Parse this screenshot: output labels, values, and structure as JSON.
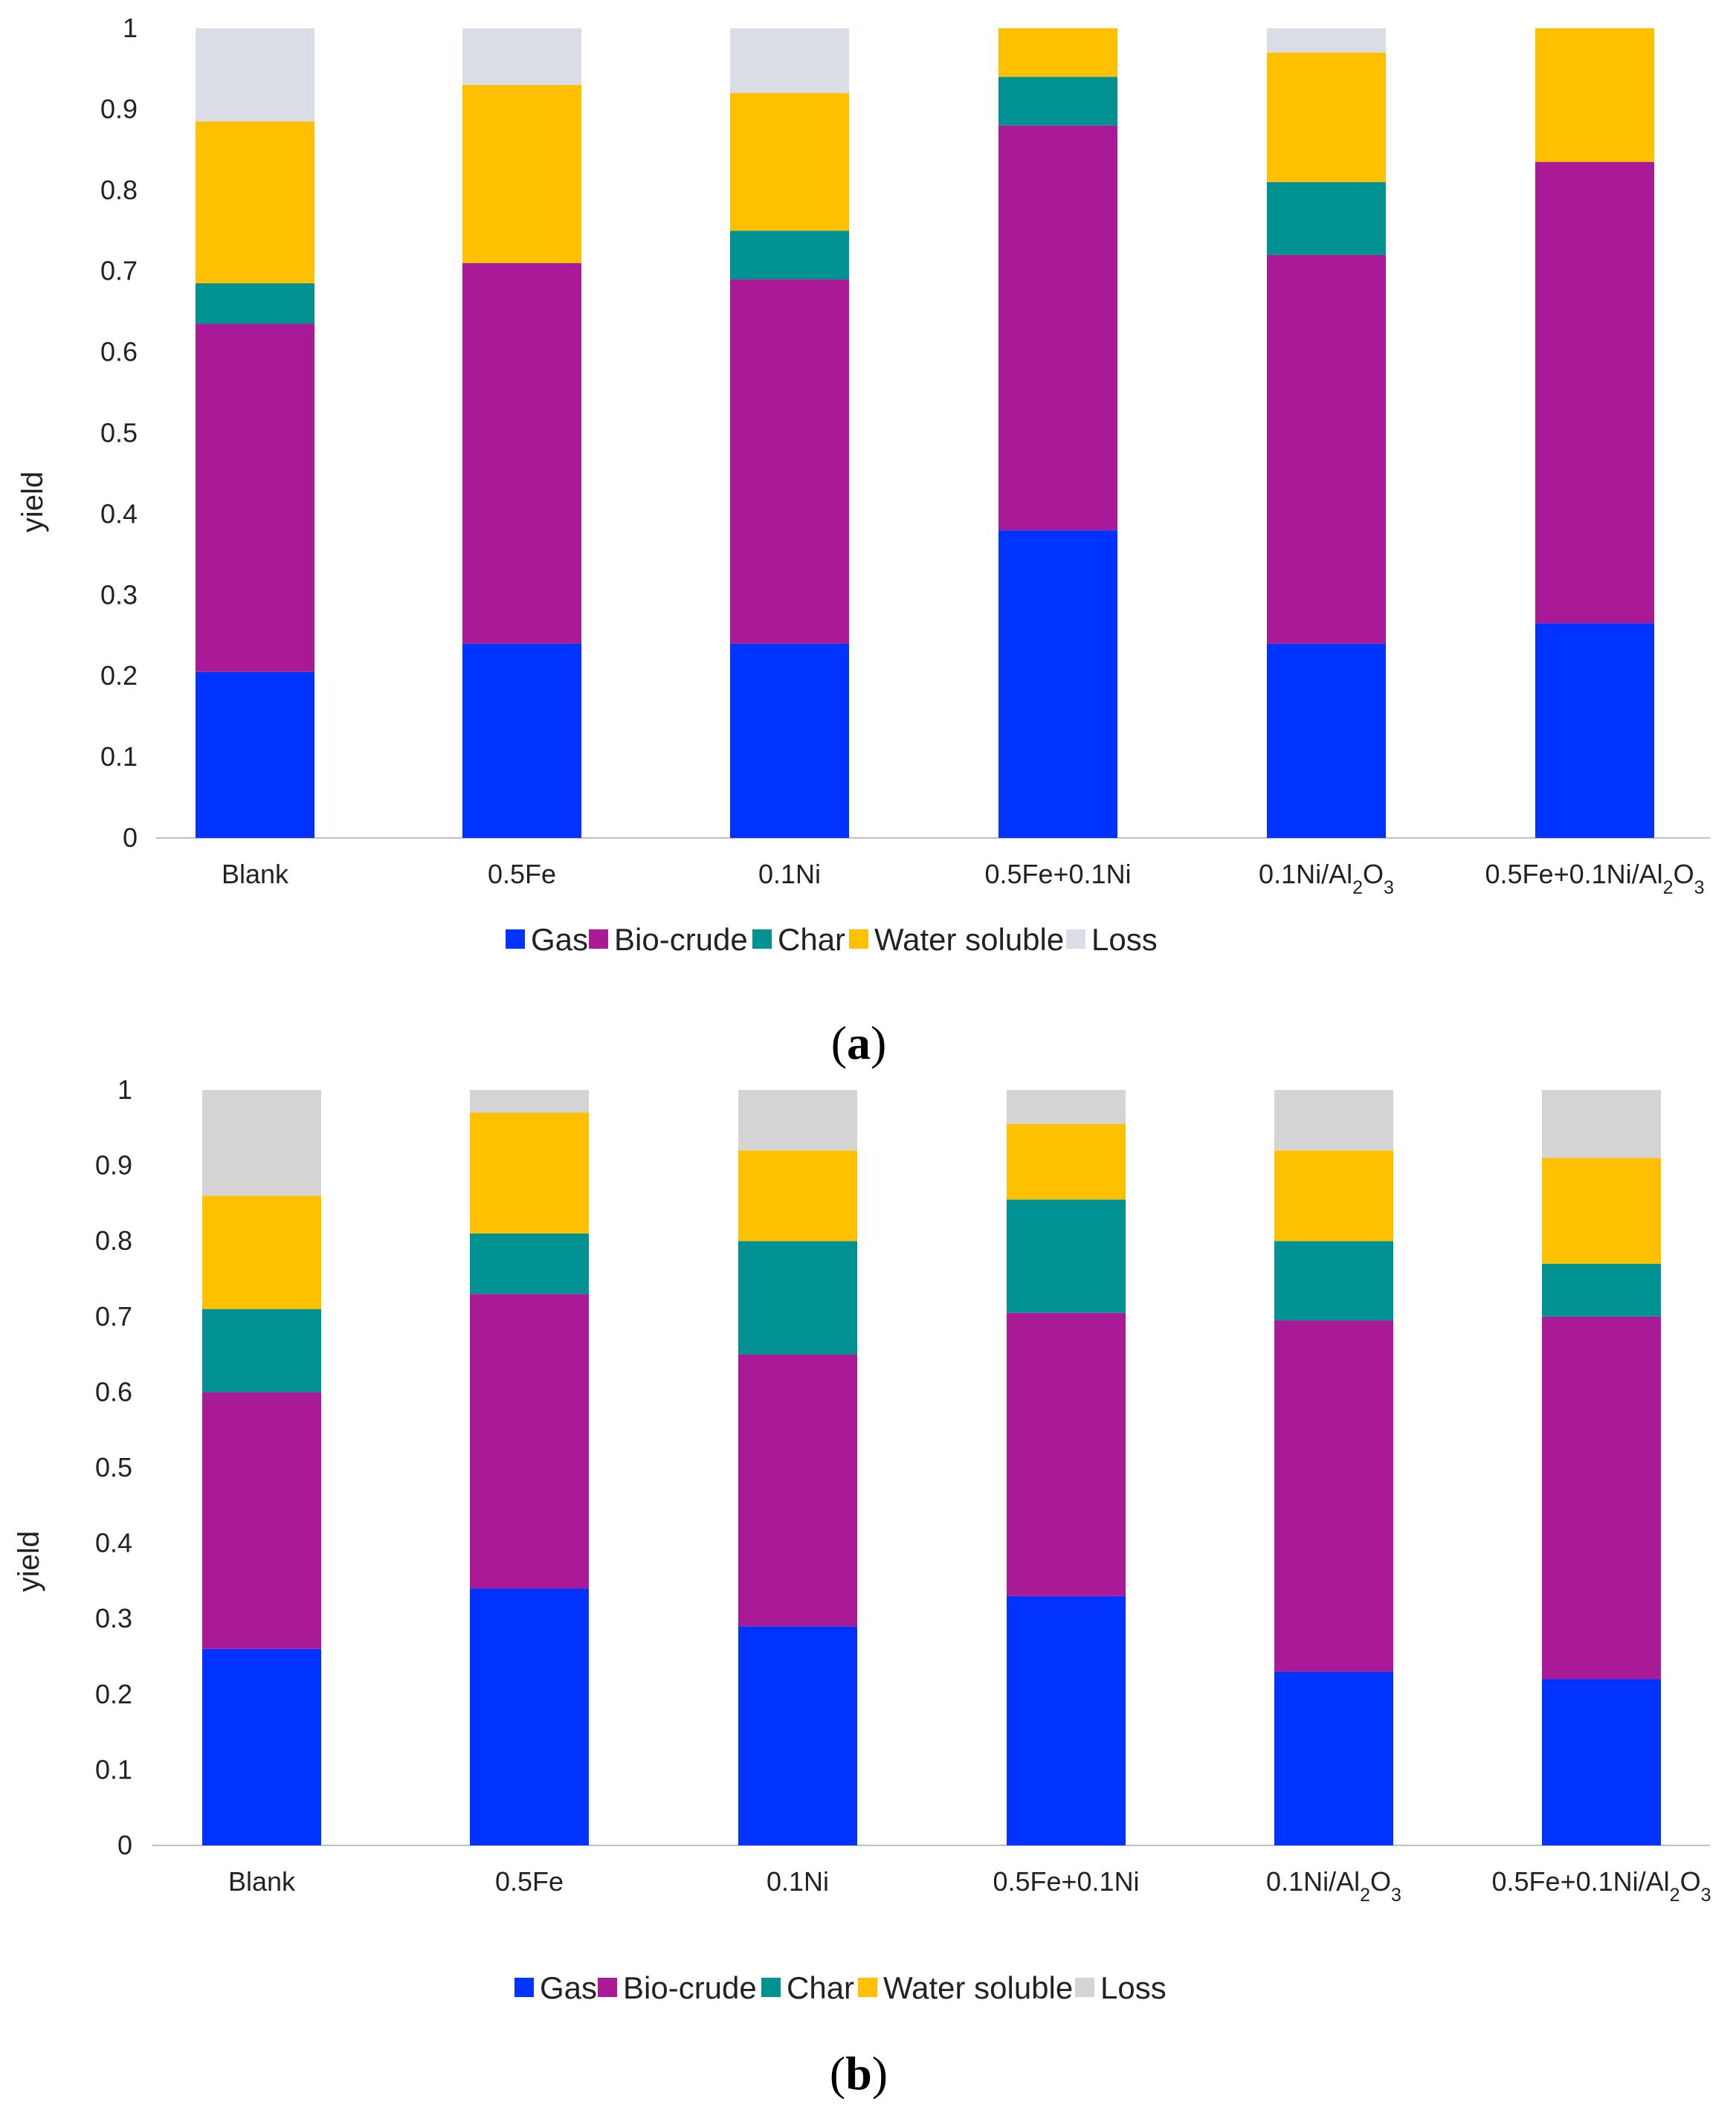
{
  "chart_data": [
    {
      "type": "bar",
      "stacked": true,
      "caption": "a",
      "ylabel": "yield",
      "xlabel": "",
      "ylim": [
        0,
        1
      ],
      "yticks": [
        "0",
        "0.1",
        "0.2",
        "0.3",
        "0.4",
        "0.5",
        "0.6",
        "0.7",
        "0.8",
        "0.9",
        "1"
      ],
      "grid": false,
      "legend_position": "bottom",
      "categories": [
        {
          "main": "Blank",
          "parts": [
            {
              "t": "Blank"
            }
          ]
        },
        {
          "main": "0.5Fe",
          "parts": [
            {
              "t": "0.5Fe"
            }
          ]
        },
        {
          "main": "0.1Ni",
          "parts": [
            {
              "t": "0.1Ni"
            }
          ]
        },
        {
          "main": "0.5Fe+0.1Ni",
          "parts": [
            {
              "t": "0.5Fe+0.1Ni"
            }
          ]
        },
        {
          "main": "0.1Ni/Al2O3",
          "parts": [
            {
              "t": "0.1Ni/Al"
            },
            {
              "t": "2",
              "sub": true
            },
            {
              "t": "O"
            },
            {
              "t": "3",
              "sub": true
            }
          ]
        },
        {
          "main": "0.5Fe+0.1Ni/Al2O3",
          "parts": [
            {
              "t": "0.5Fe+0.1Ni/Al"
            },
            {
              "t": "2",
              "sub": true
            },
            {
              "t": "O"
            },
            {
              "t": "3",
              "sub": true
            }
          ]
        }
      ],
      "series": [
        {
          "name": "Gas",
          "color": "#0033ff",
          "values": [
            0.205,
            0.24,
            0.24,
            0.38,
            0.24,
            0.265
          ]
        },
        {
          "name": "Bio-crude",
          "color": "#aa1a96",
          "values": [
            0.43,
            0.47,
            0.45,
            0.5,
            0.48,
            0.57
          ]
        },
        {
          "name": "Char",
          "color": "#009292",
          "values": [
            0.05,
            0.0,
            0.06,
            0.06,
            0.09,
            0.0
          ]
        },
        {
          "name": "Water soluble",
          "color": "#ffc000",
          "values": [
            0.2,
            0.22,
            0.17,
            0.06,
            0.16,
            0.165
          ]
        },
        {
          "name": "Loss",
          "color": "#d9dde5",
          "values": [
            0.115,
            0.07,
            0.08,
            0.0,
            0.03,
            0.0
          ]
        }
      ]
    },
    {
      "type": "bar",
      "stacked": true,
      "caption": "b",
      "ylabel": "yield",
      "xlabel": "",
      "ylim": [
        0,
        1
      ],
      "yticks": [
        "0",
        "0.1",
        "0.2",
        "0.3",
        "0.4",
        "0.5",
        "0.6",
        "0.7",
        "0.8",
        "0.9",
        "1"
      ],
      "grid": false,
      "legend_position": "bottom",
      "categories": [
        {
          "main": "Blank",
          "parts": [
            {
              "t": "Blank"
            }
          ]
        },
        {
          "main": "0.5Fe",
          "parts": [
            {
              "t": "0.5Fe"
            }
          ]
        },
        {
          "main": "0.1Ni",
          "parts": [
            {
              "t": "0.1Ni"
            }
          ]
        },
        {
          "main": "0.5Fe+0.1Ni",
          "parts": [
            {
              "t": "0.5Fe+0.1Ni"
            }
          ]
        },
        {
          "main": "0.1Ni/Al2O3",
          "parts": [
            {
              "t": "0.1Ni/Al"
            },
            {
              "t": "2",
              "sub": true
            },
            {
              "t": "O"
            },
            {
              "t": "3",
              "sub": true
            }
          ]
        },
        {
          "main": "0.5Fe+0.1Ni/Al2O3",
          "parts": [
            {
              "t": "0.5Fe+0.1Ni/Al"
            },
            {
              "t": "2",
              "sub": true
            },
            {
              "t": "O"
            },
            {
              "t": "3",
              "sub": true
            }
          ]
        }
      ],
      "series": [
        {
          "name": "Gas",
          "color": "#0033ff",
          "values": [
            0.26,
            0.34,
            0.29,
            0.33,
            0.23,
            0.22
          ]
        },
        {
          "name": "Bio-crude",
          "color": "#aa1a96",
          "values": [
            0.34,
            0.39,
            0.36,
            0.375,
            0.465,
            0.48
          ]
        },
        {
          "name": "Char",
          "color": "#009292",
          "values": [
            0.11,
            0.08,
            0.15,
            0.15,
            0.105,
            0.07
          ]
        },
        {
          "name": "Water soluble",
          "color": "#ffc000",
          "values": [
            0.15,
            0.16,
            0.12,
            0.1,
            0.12,
            0.14
          ]
        },
        {
          "name": "Loss",
          "color": "#d4d4d4",
          "values": [
            0.14,
            0.03,
            0.08,
            0.045,
            0.08,
            0.09
          ]
        }
      ]
    }
  ]
}
